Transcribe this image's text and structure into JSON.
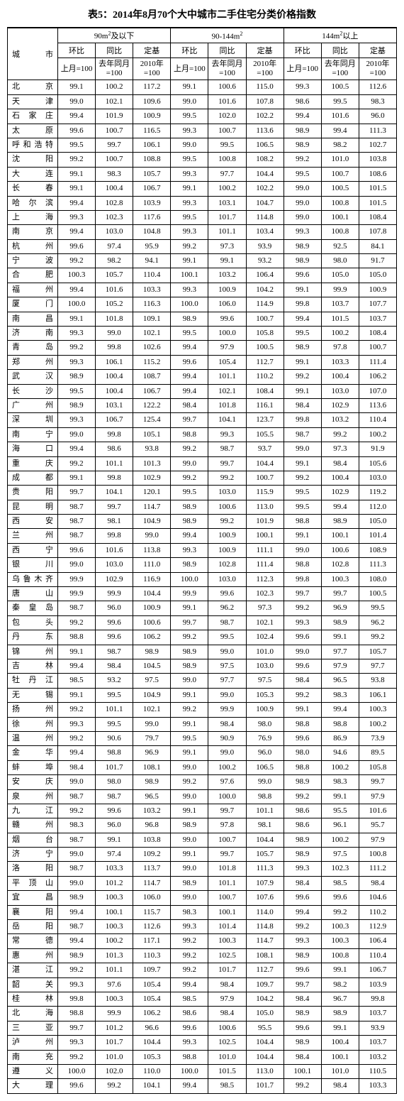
{
  "title": "表5：2014年8月70个大中城市二手住宅分类价格指数",
  "header": {
    "city": "城市",
    "group1": "90m²及以下",
    "group2": "90-144m²",
    "group3": "144m²以上",
    "hb": "环比",
    "tb": "同比",
    "dj": "定基",
    "hb_sub": "上月=100",
    "tb_sub": "去年同月=100",
    "dj_sub": "2010年=100",
    "hb_sub2": "上月=100"
  },
  "rows": [
    {
      "city": "北京",
      "d": [
        99.1,
        100.2,
        117.2,
        99.1,
        100.6,
        115.0,
        99.3,
        100.5,
        112.6
      ]
    },
    {
      "city": "天津",
      "d": [
        99.0,
        102.1,
        109.6,
        99.0,
        101.6,
        107.8,
        98.6,
        99.5,
        98.3
      ]
    },
    {
      "city": "石家庄",
      "d": [
        99.4,
        101.9,
        100.9,
        99.5,
        102.0,
        102.2,
        99.4,
        101.6,
        96.0
      ]
    },
    {
      "city": "太原",
      "d": [
        99.6,
        100.7,
        116.5,
        99.3,
        100.7,
        113.6,
        98.9,
        99.4,
        111.3
      ]
    },
    {
      "city": "呼和浩特",
      "d": [
        99.5,
        99.7,
        106.1,
        99.0,
        99.5,
        106.5,
        98.9,
        98.2,
        102.7
      ]
    },
    {
      "city": "沈阳",
      "d": [
        99.2,
        100.7,
        108.8,
        99.5,
        100.8,
        108.2,
        99.2,
        101.0,
        103.8
      ]
    },
    {
      "city": "大连",
      "d": [
        99.1,
        98.3,
        105.7,
        99.3,
        97.7,
        104.4,
        99.5,
        100.7,
        108.6
      ]
    },
    {
      "city": "长春",
      "d": [
        99.1,
        100.4,
        106.7,
        99.1,
        100.2,
        102.2,
        99.0,
        100.5,
        101.5
      ]
    },
    {
      "city": "哈尔滨",
      "d": [
        99.4,
        102.8,
        103.9,
        99.3,
        103.1,
        104.7,
        99.0,
        100.8,
        101.5
      ]
    },
    {
      "city": "上海",
      "d": [
        99.3,
        102.3,
        117.6,
        99.5,
        101.7,
        114.8,
        99.0,
        100.1,
        108.4
      ]
    },
    {
      "city": "南京",
      "d": [
        99.4,
        103.0,
        104.8,
        99.3,
        101.1,
        103.4,
        99.3,
        100.8,
        107.8
      ]
    },
    {
      "city": "杭州",
      "d": [
        99.6,
        97.4,
        95.9,
        99.2,
        97.3,
        93.9,
        98.9,
        92.5,
        84.1
      ]
    },
    {
      "city": "宁波",
      "d": [
        99.2,
        98.2,
        94.1,
        99.1,
        99.1,
        93.2,
        98.9,
        98.0,
        91.7
      ]
    },
    {
      "city": "合肥",
      "d": [
        100.3,
        105.7,
        110.4,
        100.1,
        103.2,
        106.4,
        99.6,
        105.0,
        105.0
      ]
    },
    {
      "city": "福州",
      "d": [
        99.4,
        101.6,
        103.3,
        99.3,
        100.9,
        104.2,
        99.1,
        99.9,
        100.9
      ]
    },
    {
      "city": "厦门",
      "d": [
        100.0,
        105.2,
        116.3,
        100.0,
        106.0,
        114.9,
        99.8,
        103.7,
        107.7
      ]
    },
    {
      "city": "南昌",
      "d": [
        99.1,
        101.8,
        109.1,
        98.9,
        99.6,
        100.7,
        99.4,
        101.5,
        103.7
      ]
    },
    {
      "city": "济南",
      "d": [
        99.3,
        99.0,
        102.1,
        99.5,
        100.0,
        105.8,
        99.5,
        100.2,
        108.4
      ]
    },
    {
      "city": "青岛",
      "d": [
        99.2,
        99.8,
        102.6,
        99.4,
        97.9,
        100.5,
        98.9,
        97.8,
        100.7
      ]
    },
    {
      "city": "郑州",
      "d": [
        99.3,
        106.1,
        115.2,
        99.6,
        105.4,
        112.7,
        99.1,
        103.3,
        111.4
      ]
    },
    {
      "city": "武汉",
      "d": [
        98.9,
        100.4,
        108.7,
        99.4,
        101.1,
        110.2,
        99.2,
        100.4,
        106.2
      ]
    },
    {
      "city": "长沙",
      "d": [
        99.5,
        100.4,
        106.7,
        99.4,
        102.1,
        108.4,
        99.1,
        103.0,
        107.0
      ]
    },
    {
      "city": "广州",
      "d": [
        98.9,
        103.1,
        122.2,
        98.4,
        101.8,
        116.1,
        98.4,
        102.9,
        113.6
      ]
    },
    {
      "city": "深圳",
      "d": [
        99.3,
        106.7,
        125.4,
        99.7,
        104.1,
        123.7,
        99.8,
        103.2,
        110.4
      ]
    },
    {
      "city": "南宁",
      "d": [
        99.0,
        99.8,
        105.1,
        98.8,
        99.3,
        105.5,
        98.7,
        99.2,
        100.2
      ]
    },
    {
      "city": "海口",
      "d": [
        99.4,
        98.6,
        93.8,
        99.2,
        98.7,
        93.7,
        99.0,
        97.3,
        91.9
      ]
    },
    {
      "city": "重庆",
      "d": [
        99.2,
        101.1,
        101.3,
        99.0,
        99.7,
        104.4,
        99.1,
        98.4,
        105.6
      ]
    },
    {
      "city": "成都",
      "d": [
        99.1,
        99.8,
        102.9,
        99.2,
        99.2,
        100.7,
        99.2,
        100.4,
        103.0
      ]
    },
    {
      "city": "贵阳",
      "d": [
        99.7,
        104.1,
        120.1,
        99.5,
        103.0,
        115.9,
        99.5,
        102.9,
        119.2
      ]
    },
    {
      "city": "昆明",
      "d": [
        98.7,
        99.7,
        114.7,
        98.9,
        100.6,
        113.0,
        99.5,
        99.4,
        112.0
      ]
    },
    {
      "city": "西安",
      "d": [
        98.7,
        98.1,
        104.9,
        98.9,
        99.2,
        101.9,
        98.8,
        98.9,
        105.0
      ]
    },
    {
      "city": "兰州",
      "d": [
        98.7,
        99.8,
        99.0,
        99.4,
        100.9,
        100.1,
        99.1,
        100.1,
        101.4
      ]
    },
    {
      "city": "西宁",
      "d": [
        99.6,
        101.6,
        113.8,
        99.3,
        100.9,
        111.1,
        99.0,
        100.6,
        108.9
      ]
    },
    {
      "city": "银川",
      "d": [
        99.0,
        103.0,
        111.0,
        98.9,
        102.8,
        111.4,
        98.8,
        102.8,
        111.3
      ]
    },
    {
      "city": "乌鲁木齐",
      "d": [
        99.9,
        102.9,
        116.9,
        100.0,
        103.0,
        112.3,
        99.8,
        100.3,
        108.0
      ]
    },
    {
      "city": "唐山",
      "d": [
        99.9,
        99.9,
        104.4,
        99.9,
        99.6,
        102.3,
        99.7,
        99.7,
        100.5
      ]
    },
    {
      "city": "秦皇岛",
      "d": [
        98.7,
        96.0,
        100.9,
        99.1,
        96.2,
        97.3,
        99.2,
        96.9,
        99.5
      ]
    },
    {
      "city": "包头",
      "d": [
        99.2,
        99.6,
        100.6,
        99.7,
        98.7,
        102.1,
        99.3,
        98.9,
        96.2
      ]
    },
    {
      "city": "丹东",
      "d": [
        98.8,
        99.6,
        106.2,
        99.2,
        99.5,
        102.4,
        99.6,
        99.1,
        99.2
      ]
    },
    {
      "city": "锦州",
      "d": [
        99.1,
        98.7,
        98.9,
        98.9,
        99.0,
        101.0,
        99.0,
        97.7,
        105.7
      ]
    },
    {
      "city": "吉林",
      "d": [
        99.4,
        98.4,
        104.5,
        98.9,
        97.5,
        103.0,
        99.6,
        97.9,
        97.7
      ]
    },
    {
      "city": "牡丹江",
      "d": [
        98.5,
        93.2,
        97.5,
        99.0,
        97.7,
        97.5,
        98.4,
        96.5,
        93.8
      ]
    },
    {
      "city": "无锡",
      "d": [
        99.1,
        99.5,
        104.9,
        99.1,
        99.0,
        105.3,
        99.2,
        98.3,
        106.1
      ]
    },
    {
      "city": "扬州",
      "d": [
        99.2,
        101.1,
        102.1,
        99.2,
        99.9,
        100.9,
        99.1,
        99.4,
        100.3
      ]
    },
    {
      "city": "徐州",
      "d": [
        99.3,
        99.5,
        99.0,
        99.1,
        98.4,
        98.0,
        98.8,
        98.8,
        100.2
      ]
    },
    {
      "city": "温州",
      "d": [
        99.2,
        90.6,
        79.7,
        99.5,
        90.9,
        76.9,
        99.6,
        86.9,
        73.9
      ]
    },
    {
      "city": "金华",
      "d": [
        99.4,
        98.8,
        96.9,
        99.1,
        99.0,
        96.0,
        98.0,
        94.6,
        89.5
      ]
    },
    {
      "city": "蚌埠",
      "d": [
        98.4,
        101.7,
        108.1,
        99.0,
        100.2,
        106.5,
        98.8,
        100.2,
        105.8
      ]
    },
    {
      "city": "安庆",
      "d": [
        99.0,
        98.0,
        98.9,
        99.2,
        97.6,
        99.0,
        98.9,
        98.3,
        99.7
      ]
    },
    {
      "city": "泉州",
      "d": [
        98.7,
        98.7,
        96.5,
        99.0,
        100.0,
        98.8,
        99.2,
        99.1,
        97.9
      ]
    },
    {
      "city": "九江",
      "d": [
        99.2,
        99.6,
        103.2,
        99.1,
        99.7,
        101.1,
        98.6,
        95.5,
        101.6
      ]
    },
    {
      "city": "赣州",
      "d": [
        98.3,
        96.0,
        96.8,
        98.9,
        97.8,
        98.1,
        98.6,
        96.1,
        95.7
      ]
    },
    {
      "city": "烟台",
      "d": [
        98.7,
        99.1,
        103.8,
        99.0,
        100.7,
        104.4,
        98.9,
        100.2,
        97.9
      ]
    },
    {
      "city": "济宁",
      "d": [
        99.0,
        97.4,
        109.2,
        99.1,
        99.7,
        105.7,
        98.9,
        97.5,
        100.8
      ]
    },
    {
      "city": "洛阳",
      "d": [
        98.7,
        103.3,
        113.7,
        99.0,
        101.8,
        111.3,
        99.3,
        102.3,
        111.2
      ]
    },
    {
      "city": "平顶山",
      "d": [
        99.0,
        101.2,
        114.7,
        98.9,
        101.1,
        107.9,
        98.4,
        98.5,
        98.4
      ]
    },
    {
      "city": "宜昌",
      "d": [
        98.9,
        100.3,
        106.0,
        99.0,
        100.7,
        107.6,
        99.6,
        99.6,
        104.6
      ]
    },
    {
      "city": "襄阳",
      "d": [
        99.4,
        100.1,
        115.7,
        98.3,
        100.1,
        114.0,
        99.4,
        99.2,
        110.2
      ]
    },
    {
      "city": "岳阳",
      "d": [
        98.7,
        100.3,
        112.6,
        99.3,
        101.4,
        114.8,
        99.2,
        100.3,
        112.9
      ]
    },
    {
      "city": "常德",
      "d": [
        99.4,
        100.2,
        117.1,
        99.2,
        100.3,
        114.7,
        99.3,
        100.3,
        106.4
      ]
    },
    {
      "city": "惠州",
      "d": [
        98.9,
        101.3,
        110.3,
        99.2,
        102.5,
        108.1,
        98.9,
        100.8,
        110.4
      ]
    },
    {
      "city": "湛江",
      "d": [
        99.2,
        101.1,
        109.7,
        99.2,
        101.7,
        112.7,
        99.6,
        99.1,
        106.7
      ]
    },
    {
      "city": "韶关",
      "d": [
        99.3,
        97.6,
        105.4,
        99.4,
        98.4,
        109.7,
        99.7,
        98.2,
        103.9
      ]
    },
    {
      "city": "桂林",
      "d": [
        99.8,
        100.3,
        105.4,
        98.5,
        97.9,
        104.2,
        98.4,
        96.7,
        99.8
      ]
    },
    {
      "city": "北海",
      "d": [
        98.8,
        99.9,
        106.2,
        98.6,
        98.4,
        105.0,
        98.9,
        98.9,
        103.7
      ]
    },
    {
      "city": "三亚",
      "d": [
        99.7,
        101.2,
        96.6,
        99.6,
        100.6,
        95.5,
        99.6,
        99.1,
        93.9
      ]
    },
    {
      "city": "泸州",
      "d": [
        99.3,
        101.7,
        104.4,
        99.3,
        102.5,
        104.4,
        98.9,
        100.4,
        103.7
      ]
    },
    {
      "city": "南充",
      "d": [
        99.2,
        101.0,
        105.3,
        98.8,
        101.0,
        104.4,
        98.4,
        100.1,
        103.2
      ]
    },
    {
      "city": "遵义",
      "d": [
        100.0,
        102.0,
        110.0,
        100.0,
        101.5,
        113.0,
        100.1,
        101.0,
        110.5
      ]
    },
    {
      "city": "大理",
      "d": [
        99.6,
        99.2,
        104.1,
        99.4,
        98.5,
        101.7,
        99.2,
        98.4,
        103.3
      ]
    }
  ]
}
